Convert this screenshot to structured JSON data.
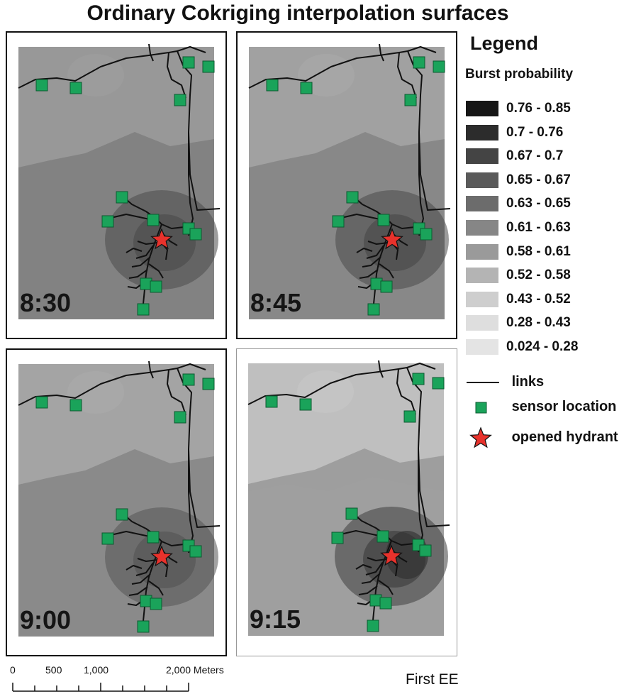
{
  "title": "Ordinary Cokriging interpolation surfaces",
  "legend": {
    "title": "Legend",
    "subtitle": "Burst probability",
    "classes": [
      {
        "label": "0.76 - 0.85",
        "color": "#161616"
      },
      {
        "label": "0.7 - 0.76",
        "color": "#2c2c2c"
      },
      {
        "label": "0.67 - 0.7",
        "color": "#444444"
      },
      {
        "label": "0.65 - 0.67",
        "color": "#5a5a5a"
      },
      {
        "label": "0.63 - 0.65",
        "color": "#6c6c6c"
      },
      {
        "label": "0.61 - 0.63",
        "color": "#868686"
      },
      {
        "label": "0.58 - 0.61",
        "color": "#9a9a9a"
      },
      {
        "label": "0.52 - 0.58",
        "color": "#b4b4b4"
      },
      {
        "label": "0.43 - 0.52",
        "color": "#cecece"
      },
      {
        "label": "0.28 - 0.43",
        "color": "#dedede"
      },
      {
        "label": "0.024 - 0.28",
        "color": "#e4e4e4"
      }
    ],
    "links_label": "links",
    "sensor_label": "sensor location",
    "hydrant_label": "opened hydrant",
    "sensor_color": "#1aa35a",
    "hydrant_color": "#e8322c"
  },
  "panels": [
    {
      "time": "8:30",
      "base_color": "#828282",
      "hot_color": "#4c4c4c",
      "light_color": "#9c9c9c"
    },
    {
      "time": "8:45",
      "base_color": "#888888",
      "hot_color": "#4a4a4a",
      "light_color": "#a6a6a6"
    },
    {
      "time": "9:00",
      "base_color": "#8a8a8a",
      "hot_color": "#555555",
      "light_color": "#a8a8a8"
    },
    {
      "time": "9:15",
      "base_color": "#9e9e9e",
      "hot_color": "#3e3e3e",
      "light_color": "#c4c4c4"
    }
  ],
  "scale_bar": {
    "labels": [
      "0",
      "500",
      "1,000",
      "2,000 Meters"
    ]
  },
  "credit": "First EE"
}
